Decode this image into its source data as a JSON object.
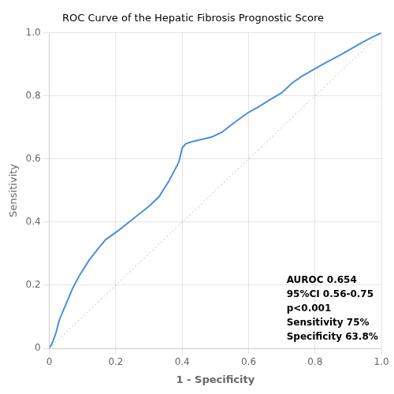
{
  "chart_data": {
    "type": "line",
    "title": "ROC Curve of the Hepatic Fibrosis Prognostic Score",
    "xlabel": "1 - Specificity",
    "ylabel": "Sensitivity",
    "xlim": [
      0,
      1.0
    ],
    "ylim": [
      0,
      1.0
    ],
    "xticks": [
      0,
      0.2,
      0.4,
      0.6,
      0.8,
      {
        "value": 1.0,
        "label": "1.0"
      }
    ],
    "yticks": [
      0,
      0.2,
      0.4,
      0.6,
      0.8,
      {
        "value": 1.0,
        "label": "1.0"
      }
    ],
    "grid": true,
    "annotation": "AUROC 0.654\n95%CI 0.56-0.75\np<0.001\nSensitivity 75%\nSpecificity 63.8%",
    "series": [
      {
        "x": [
          0,
          1
        ],
        "values": [
          0,
          1
        ],
        "color": "#bbbbbb",
        "line_style": "dotted"
      },
      {
        "x": [
          0.0,
          0.01,
          0.02,
          0.03,
          0.05,
          0.07,
          0.09,
          0.12,
          0.15,
          0.17,
          0.19,
          0.21,
          0.24,
          0.27,
          0.3,
          0.33,
          0.36,
          0.39,
          0.4,
          0.41,
          0.43,
          0.45,
          0.47,
          0.49,
          0.52,
          0.55,
          0.58,
          0.6,
          0.63,
          0.66,
          0.7,
          0.73,
          0.76,
          0.79,
          0.82,
          0.85,
          0.88,
          0.91,
          0.94,
          0.97,
          1.0
        ],
        "values": [
          0.0,
          0.02,
          0.05,
          0.09,
          0.14,
          0.19,
          0.23,
          0.28,
          0.32,
          0.345,
          0.36,
          0.375,
          0.4,
          0.425,
          0.45,
          0.48,
          0.53,
          0.59,
          0.635,
          0.648,
          0.655,
          0.66,
          0.665,
          0.67,
          0.685,
          0.71,
          0.733,
          0.748,
          0.765,
          0.785,
          0.81,
          0.84,
          0.862,
          0.88,
          0.898,
          0.915,
          0.932,
          0.95,
          0.968,
          0.985,
          1.0
        ],
        "color": "#4a90d9",
        "line_style": "solid"
      }
    ]
  }
}
